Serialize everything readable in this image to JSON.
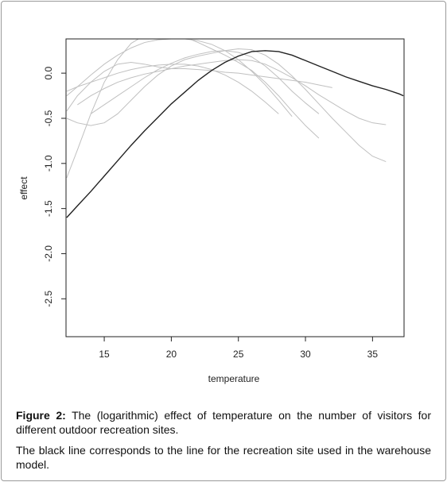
{
  "chart_data": {
    "type": "line",
    "xlabel": "temperature",
    "ylabel": "effect",
    "x": [
      12.2,
      13,
      14,
      15,
      16,
      17,
      18,
      19,
      20,
      21,
      22,
      23,
      24,
      25,
      26,
      27,
      28,
      29,
      30,
      31,
      32,
      33,
      34,
      35,
      36,
      37,
      37.3
    ],
    "series": [
      {
        "color": "#c0c0c0",
        "values": [
          -0.25,
          -0.15,
          -0.02,
          0.1,
          0.2,
          0.28,
          0.34,
          0.37,
          0.38,
          0.38,
          0.36,
          0.32,
          0.25,
          0.15,
          0.02,
          -0.13,
          -0.3,
          -0.48,
          null,
          null,
          null,
          null,
          null,
          null,
          null,
          null,
          null
        ]
      },
      {
        "color": "#c0c0c0",
        "values": [
          -1.16,
          -0.85,
          -0.45,
          -0.1,
          0.15,
          0.33,
          0.42,
          0.45,
          0.44,
          0.4,
          0.34,
          0.27,
          0.2,
          0.12,
          0.03,
          -0.1,
          -0.25,
          -0.42,
          -0.58,
          -0.72,
          null,
          null,
          null,
          null,
          null,
          null,
          null
        ]
      },
      {
        "color": "#c0c0c0",
        "values": [
          -0.5,
          -0.55,
          -0.58,
          -0.55,
          -0.45,
          -0.3,
          -0.15,
          -0.02,
          0.08,
          0.15,
          0.19,
          0.22,
          0.25,
          0.27,
          0.26,
          0.2,
          0.1,
          -0.03,
          -0.18,
          -0.34,
          -0.5,
          -0.65,
          -0.8,
          -0.92,
          -0.98,
          null,
          null
        ]
      },
      {
        "color": "#c0c0c0",
        "values": [
          null,
          -0.35,
          -0.25,
          -0.17,
          -0.1,
          -0.05,
          -0.01,
          0.02,
          0.05,
          0.08,
          0.1,
          0.12,
          0.14,
          0.15,
          0.14,
          0.1,
          0.03,
          -0.05,
          -0.14,
          -0.24,
          -0.33,
          -0.42,
          -0.5,
          -0.55,
          -0.57,
          null,
          null
        ]
      },
      {
        "color": "#c0c0c0",
        "values": [
          -0.42,
          -0.25,
          -0.1,
          0.02,
          0.1,
          0.12,
          0.1,
          0.07,
          0.05,
          0.05,
          0.04,
          0.03,
          0.01,
          0.0,
          -0.02,
          -0.04,
          -0.06,
          -0.08,
          -0.1,
          -0.13,
          -0.16,
          null,
          null,
          null,
          null,
          null,
          null
        ]
      },
      {
        "color": "#c0c0c0",
        "values": [
          -0.2,
          -0.15,
          -0.1,
          -0.05,
          0.0,
          0.04,
          0.07,
          0.09,
          0.1,
          0.1,
          0.08,
          0.04,
          -0.02,
          -0.1,
          -0.2,
          -0.32,
          -0.45,
          null,
          null,
          null,
          null,
          null,
          null,
          null,
          null,
          null,
          null
        ]
      },
      {
        "color": "#c0c0c0",
        "values": [
          null,
          null,
          -0.45,
          -0.35,
          -0.25,
          -0.15,
          -0.05,
          0.04,
          0.11,
          0.17,
          0.21,
          0.24,
          0.25,
          0.23,
          0.18,
          0.08,
          -0.05,
          -0.2,
          -0.33,
          -0.45,
          null,
          null,
          null,
          null,
          null,
          null,
          null
        ]
      },
      {
        "color": "#222222",
        "values": [
          -1.6,
          -1.47,
          -1.31,
          -1.14,
          -0.97,
          -0.8,
          -0.64,
          -0.49,
          -0.34,
          -0.21,
          -0.08,
          0.03,
          0.12,
          0.19,
          0.24,
          0.25,
          0.24,
          0.2,
          0.14,
          0.08,
          0.02,
          -0.04,
          -0.09,
          -0.14,
          -0.18,
          -0.23,
          -0.25
        ]
      }
    ],
    "xlim": [
      12.15,
      37.35
    ],
    "ylim": [
      -2.92,
      0.38
    ],
    "xticks": [
      15,
      20,
      25,
      30,
      35
    ],
    "yticks": [
      {
        "value": 0,
        "label": "0.0"
      },
      -0.5,
      {
        "value": -1,
        "label": "-1.0"
      },
      -1.5,
      {
        "value": -2,
        "label": "-2.0"
      },
      -2.5
    ]
  },
  "caption": {
    "label": "Figure 2:",
    "text": "The (logarithmic) effect of temperature on the number of visitors for different outdoor recreation sites."
  },
  "note": "The black line corresponds to the line for the recreation site used in the warehouse model."
}
